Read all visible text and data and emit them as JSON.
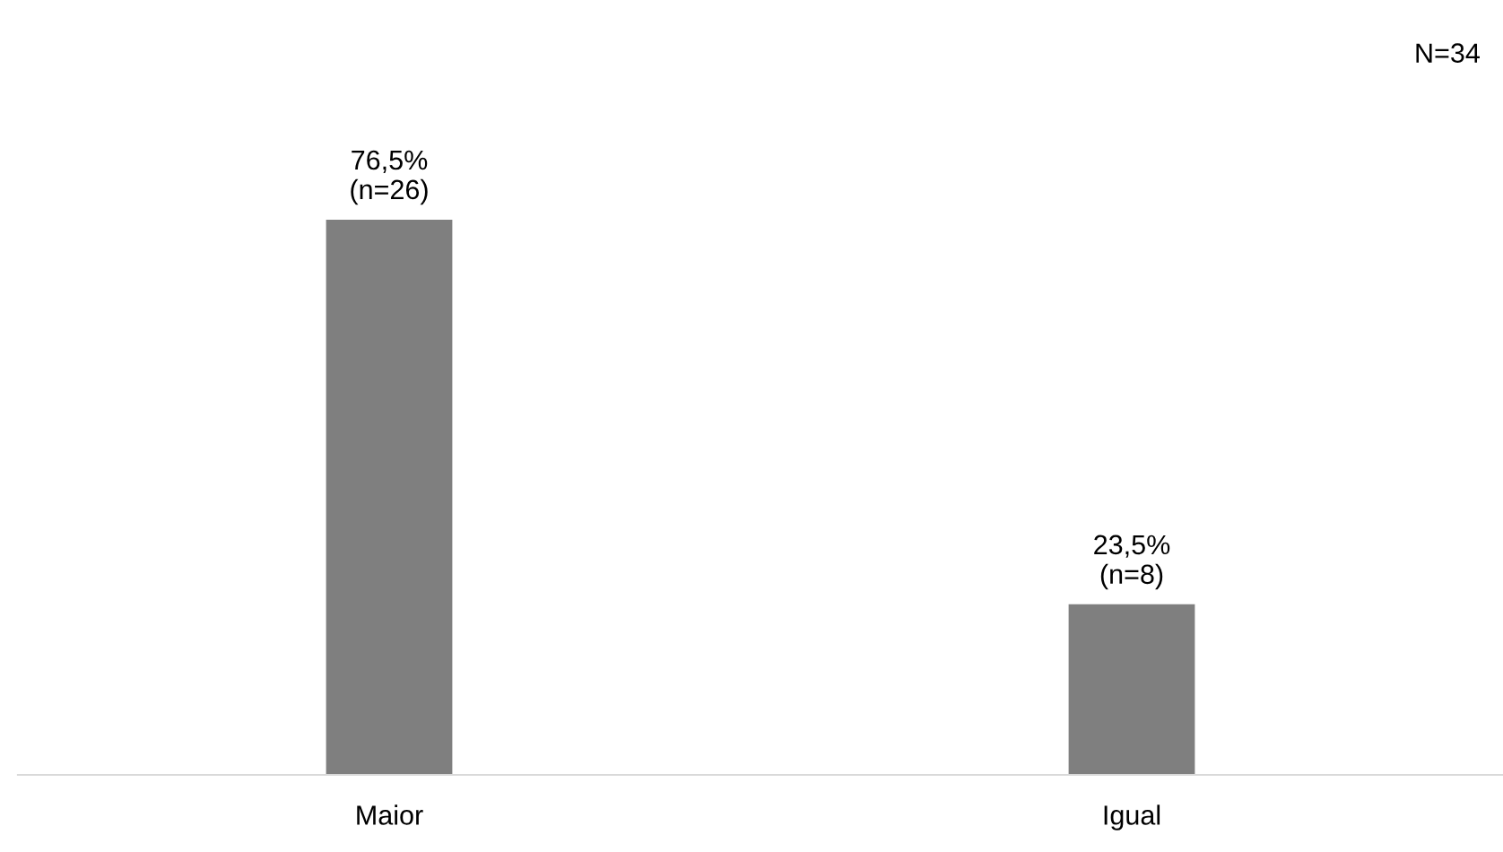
{
  "chart_data": {
    "type": "bar",
    "categories": [
      "Maior",
      "Igual"
    ],
    "values": [
      76.5,
      23.5
    ],
    "value_labels": [
      "76,5%\n(n=26)",
      "23,5%\n(n=8)"
    ],
    "color": "#7f7f7f",
    "grid": false,
    "legend": false,
    "annotations": [
      "N=34"
    ]
  }
}
